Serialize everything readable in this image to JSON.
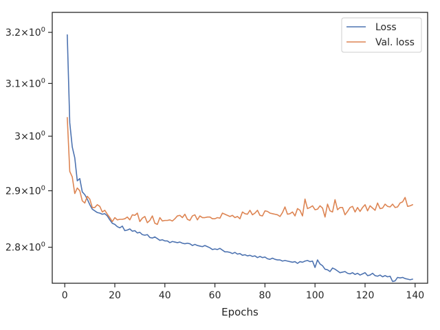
{
  "chart_data": {
    "type": "line",
    "title": "",
    "xlabel": "Epochs",
    "ylabel": "",
    "xlim": [
      -5,
      145
    ],
    "ylim": [
      2.738,
      3.24
    ],
    "yscale": "log",
    "grid": false,
    "legend_position": "top-right",
    "x_ticks": [
      0,
      20,
      40,
      60,
      80,
      100,
      120,
      140
    ],
    "x_tick_labels": [
      "0",
      "20",
      "40",
      "60",
      "80",
      "100",
      "120",
      "140"
    ],
    "y_ticks": [
      2.8,
      2.9,
      3.0,
      3.1,
      3.2
    ],
    "y_tick_labels": [
      {
        "mantissa": "2.8",
        "base": "10",
        "exp": "0"
      },
      {
        "mantissa": "2.9",
        "base": "10",
        "exp": "0"
      },
      {
        "mantissa": "3",
        "base": "10",
        "exp": "0"
      },
      {
        "mantissa": "3.1",
        "base": "10",
        "exp": "0"
      },
      {
        "mantissa": "3.2",
        "base": "10",
        "exp": "0"
      }
    ],
    "x": [
      1,
      2,
      3,
      4,
      5,
      6,
      7,
      8,
      9,
      10,
      11,
      12,
      13,
      14,
      15,
      16,
      17,
      18,
      19,
      20,
      21,
      22,
      23,
      24,
      25,
      26,
      27,
      28,
      29,
      30,
      31,
      32,
      33,
      34,
      35,
      36,
      37,
      38,
      39,
      40,
      41,
      42,
      43,
      44,
      45,
      46,
      47,
      48,
      49,
      50,
      51,
      52,
      53,
      54,
      55,
      56,
      57,
      58,
      59,
      60,
      61,
      62,
      63,
      64,
      65,
      66,
      67,
      68,
      69,
      70,
      71,
      72,
      73,
      74,
      75,
      76,
      77,
      78,
      79,
      80,
      81,
      82,
      83,
      84,
      85,
      86,
      87,
      88,
      89,
      90,
      91,
      92,
      93,
      94,
      95,
      96,
      97,
      98,
      99,
      100,
      101,
      102,
      103,
      104,
      105,
      106,
      107,
      108,
      109,
      110,
      111,
      112,
      113,
      114,
      115,
      116,
      117,
      118,
      119,
      120,
      121,
      122,
      123,
      124,
      125,
      126,
      127,
      128,
      129,
      130,
      131,
      132,
      133,
      134,
      135,
      136,
      137,
      138,
      139
    ],
    "series": [
      {
        "name": "Loss",
        "color": "#4c72b0",
        "values": [
          3.195,
          3.025,
          2.98,
          2.96,
          2.918,
          2.922,
          2.898,
          2.893,
          2.885,
          2.875,
          2.867,
          2.864,
          2.861,
          2.86,
          2.858,
          2.859,
          2.855,
          2.848,
          2.842,
          2.84,
          2.836,
          2.834,
          2.837,
          2.829,
          2.83,
          2.832,
          2.828,
          2.829,
          2.825,
          2.826,
          2.822,
          2.821,
          2.822,
          2.817,
          2.816,
          2.818,
          2.815,
          2.812,
          2.813,
          2.811,
          2.811,
          2.808,
          2.81,
          2.809,
          2.808,
          2.809,
          2.807,
          2.806,
          2.807,
          2.806,
          2.803,
          2.805,
          2.803,
          2.802,
          2.801,
          2.803,
          2.801,
          2.799,
          2.796,
          2.797,
          2.796,
          2.798,
          2.795,
          2.792,
          2.792,
          2.791,
          2.789,
          2.791,
          2.788,
          2.789,
          2.786,
          2.787,
          2.785,
          2.786,
          2.784,
          2.785,
          2.782,
          2.784,
          2.782,
          2.783,
          2.78,
          2.779,
          2.781,
          2.779,
          2.778,
          2.778,
          2.776,
          2.777,
          2.776,
          2.775,
          2.774,
          2.775,
          2.772,
          2.775,
          2.774,
          2.776,
          2.777,
          2.775,
          2.776,
          2.765,
          2.778,
          2.771,
          2.768,
          2.762,
          2.761,
          2.758,
          2.764,
          2.762,
          2.759,
          2.756,
          2.757,
          2.758,
          2.755,
          2.754,
          2.756,
          2.753,
          2.755,
          2.752,
          2.754,
          2.756,
          2.751,
          2.752,
          2.755,
          2.751,
          2.75,
          2.752,
          2.749,
          2.751,
          2.749,
          2.75,
          2.741,
          2.742,
          2.748,
          2.747,
          2.748,
          2.746,
          2.745,
          2.744,
          2.745
        ]
      },
      {
        "name": "Val. loss",
        "color": "#dd8452",
        "values": [
          3.035,
          2.935,
          2.925,
          2.895,
          2.905,
          2.9,
          2.882,
          2.878,
          2.89,
          2.885,
          2.87,
          2.87,
          2.875,
          2.872,
          2.862,
          2.865,
          2.858,
          2.852,
          2.845,
          2.852,
          2.848,
          2.849,
          2.849,
          2.85,
          2.853,
          2.848,
          2.857,
          2.856,
          2.86,
          2.845,
          2.851,
          2.854,
          2.843,
          2.847,
          2.855,
          2.842,
          2.84,
          2.852,
          2.846,
          2.847,
          2.847,
          2.848,
          2.846,
          2.85,
          2.855,
          2.856,
          2.852,
          2.858,
          2.849,
          2.847,
          2.855,
          2.857,
          2.848,
          2.855,
          2.852,
          2.852,
          2.853,
          2.853,
          2.85,
          2.85,
          2.852,
          2.851,
          2.86,
          2.858,
          2.856,
          2.854,
          2.856,
          2.852,
          2.854,
          2.85,
          2.862,
          2.859,
          2.858,
          2.865,
          2.857,
          2.86,
          2.865,
          2.856,
          2.855,
          2.864,
          2.863,
          2.86,
          2.859,
          2.858,
          2.857,
          2.854,
          2.861,
          2.871,
          2.858,
          2.859,
          2.862,
          2.855,
          2.868,
          2.865,
          2.855,
          2.885,
          2.868,
          2.87,
          2.873,
          2.866,
          2.867,
          2.873,
          2.869,
          2.853,
          2.876,
          2.864,
          2.862,
          2.884,
          2.866,
          2.87,
          2.87,
          2.857,
          2.863,
          2.87,
          2.872,
          2.862,
          2.87,
          2.863,
          2.87,
          2.875,
          2.864,
          2.873,
          2.869,
          2.865,
          2.878,
          2.868,
          2.869,
          2.876,
          2.872,
          2.871,
          2.876,
          2.87,
          2.871,
          2.878,
          2.88,
          2.888,
          2.872,
          2.873,
          2.875
        ]
      }
    ]
  }
}
